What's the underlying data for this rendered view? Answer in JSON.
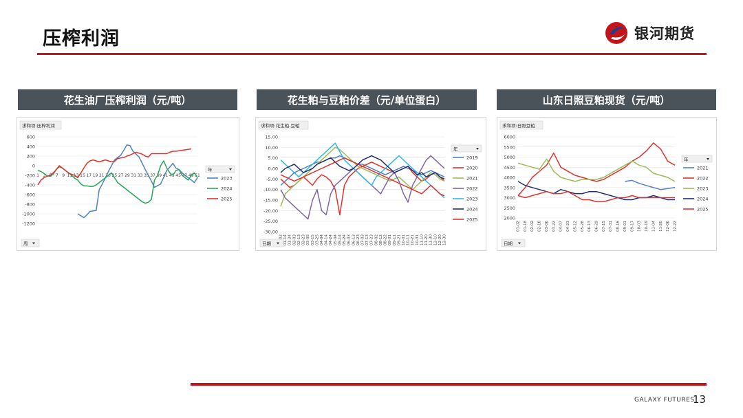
{
  "slide": {
    "title": "压榨利润",
    "logo_text": "银河期货",
    "footer": "GALAXY FUTURES",
    "page": "13"
  },
  "colors": {
    "accent": "#c3161c",
    "header_bg": "#4a525a",
    "s2019": "#4f81bd",
    "s2020": "#e0322d",
    "s2021": "#9bbb59",
    "s2022": "#8064a2",
    "s2023": "#2eb7e6",
    "s2024": "#1f2e6e",
    "s2025": "#e0322d"
  },
  "chart_data": [
    {
      "panel_title": "花生油厂压榨利润（元/吨）",
      "type": "line",
      "field_label": "求和项:压榨利润",
      "filter_label": "周",
      "legend_title": "年",
      "yticks": [
        "600",
        "400",
        "200",
        "0",
        "-200",
        "-400",
        "-600",
        "-800",
        "-1000",
        "-1200"
      ],
      "ylim": [
        -1200,
        600
      ],
      "xlim": [
        1,
        53
      ],
      "xticks": [
        "1",
        "3",
        "5",
        "7",
        "9",
        "11",
        "13",
        "15",
        "17",
        "19",
        "21",
        "23",
        "25",
        "27",
        "29",
        "31",
        "33",
        "35",
        "37",
        "39",
        "41",
        "43",
        "45",
        "47",
        "49",
        "51"
      ],
      "series": [
        {
          "name": "2023",
          "color": "#4f81bd",
          "x": [
            14,
            16,
            17,
            18,
            20,
            21,
            22,
            23,
            24,
            25,
            26,
            28,
            29,
            30,
            31,
            32,
            34,
            35,
            36,
            37,
            38,
            39,
            41,
            43,
            44,
            45,
            46,
            47,
            48,
            49,
            50,
            51,
            52,
            53
          ],
          "y": [
            -1000,
            -1080,
            -1020,
            -950,
            -930,
            -500,
            -380,
            -250,
            -120,
            0,
            120,
            220,
            320,
            430,
            420,
            300,
            180,
            50,
            -80,
            -200,
            -320,
            -450,
            -380,
            -100,
            -30,
            50,
            -50,
            -80,
            -150,
            -200,
            -250,
            -300,
            -350,
            -250
          ]
        },
        {
          "name": "2024",
          "color": "#2aa35a",
          "x": [
            1,
            2,
            3,
            4,
            5,
            6,
            7,
            8,
            9,
            10,
            11,
            12,
            13,
            14,
            15,
            16,
            17,
            18,
            19,
            20,
            21,
            22,
            23,
            24,
            25,
            26,
            27,
            28,
            29,
            30,
            31,
            32,
            33,
            34,
            35,
            36,
            37,
            38,
            39,
            40,
            41,
            42,
            43,
            44,
            45,
            46,
            47,
            48,
            49,
            50,
            51,
            52,
            53
          ],
          "y": [
            -100,
            -120,
            -160,
            -210,
            -220,
            -180,
            -80,
            -20,
            -50,
            -100,
            -150,
            -200,
            -260,
            -300,
            -380,
            -420,
            -420,
            -430,
            -430,
            -400,
            -350,
            -300,
            -250,
            -200,
            -150,
            -250,
            -350,
            -400,
            -450,
            -500,
            -550,
            -600,
            -650,
            -700,
            -750,
            -780,
            -760,
            -700,
            -300,
            -200,
            0,
            100,
            -50,
            -150,
            -200,
            -100,
            -80,
            -200,
            -250,
            -300,
            -200,
            -150,
            -250
          ]
        },
        {
          "name": "2025",
          "color": "#e0322d",
          "x": [
            1,
            2,
            3,
            4,
            5,
            6,
            7,
            8,
            9,
            10,
            11,
            12,
            13,
            14,
            15,
            16,
            17,
            18,
            19,
            20,
            21,
            22,
            23,
            24,
            25,
            26,
            27,
            28,
            29,
            30,
            31,
            32,
            33,
            34,
            35,
            36,
            37,
            38,
            39,
            40,
            41,
            42,
            43,
            44,
            45,
            46,
            47,
            48,
            49,
            50,
            51
          ],
          "y": [
            -400,
            -300,
            -250,
            -220,
            -200,
            -150,
            -80,
            0,
            -50,
            -100,
            -150,
            -180,
            -200,
            -250,
            -150,
            -50,
            50,
            100,
            120,
            100,
            80,
            100,
            120,
            100,
            80,
            90,
            150,
            160,
            170,
            200,
            220,
            250,
            280,
            260,
            240,
            200,
            180,
            250,
            250,
            250,
            250,
            250,
            250,
            280,
            300,
            300,
            310,
            320,
            330,
            340,
            350
          ]
        }
      ]
    },
    {
      "panel_title": "花生粕与豆粕价差（元/单位蛋白）",
      "type": "line",
      "field_label": "求和项:花生粕-豆粕",
      "filter_label": "日期",
      "legend_title": "年",
      "yticks": [
        "15.00",
        "10.00",
        "5.00",
        "0.00",
        "-5.00",
        "-10.00",
        "-15.00",
        "-20.00",
        "-25.00",
        "-30.00"
      ],
      "ylim": [
        -30,
        15
      ],
      "xticks": [
        "01-02",
        "01-14",
        "01-24",
        "02-03",
        "02-13",
        "02-23",
        "03-05",
        "03-15",
        "03-25",
        "04-04",
        "04-14",
        "04-24",
        "05-04",
        "05-14",
        "05-24",
        "06-03",
        "06-13",
        "06-23",
        "07-03",
        "07-13",
        "07-23",
        "08-02",
        "08-12",
        "08-22",
        "09-01",
        "09-11",
        "09-21",
        "10-01",
        "10-11",
        "10-21",
        "10-31",
        "11-10",
        "11-20",
        "11-30",
        "12-10",
        "12-20",
        "12-30"
      ],
      "series": [
        {
          "name": "2019",
          "color": "#4f81bd",
          "y": [
            -8,
            -6,
            -4,
            -2,
            -1,
            0,
            1,
            2,
            3,
            3,
            4,
            5,
            5,
            6,
            5,
            4,
            3,
            2,
            2,
            1,
            0,
            -1,
            -2,
            -3,
            -2,
            -1,
            0,
            1,
            0,
            -1,
            -2,
            -3,
            -2,
            -1,
            -2,
            -3,
            -4
          ]
        },
        {
          "name": "2020",
          "color": "#e0322d",
          "y": [
            -5,
            -7,
            -9,
            -8,
            -6,
            -4,
            -6,
            -8,
            -5,
            -3,
            -4,
            -6,
            -10,
            -22,
            -8,
            -4,
            -2,
            0,
            1,
            2,
            3,
            2,
            1,
            0,
            -1,
            -2,
            -1,
            0,
            1,
            -2,
            -4,
            -6,
            -5,
            -3,
            -2,
            -4,
            -6
          ]
        },
        {
          "name": "2021",
          "color": "#9bbb59",
          "y": [
            -18,
            -12,
            -10,
            -8,
            -6,
            -4,
            -2,
            0,
            2,
            4,
            6,
            8,
            10,
            9,
            7,
            5,
            3,
            1,
            0,
            -1,
            -2,
            -3,
            -4,
            -5,
            -6,
            -5,
            -4,
            -6,
            -8,
            -10,
            -8,
            -6,
            -4,
            -2,
            -3,
            -5,
            -6
          ]
        },
        {
          "name": "2022",
          "color": "#8064a2",
          "y": [
            -10,
            -14,
            -16,
            -18,
            -20,
            -22,
            -24,
            -15,
            -10,
            -20,
            -22,
            -12,
            -8,
            -6,
            -4,
            -2,
            0,
            -2,
            -4,
            -6,
            -8,
            -10,
            -12,
            -8,
            -4,
            -2,
            -6,
            -12,
            -16,
            -8,
            -4,
            0,
            4,
            6,
            4,
            2,
            0
          ]
        },
        {
          "name": "2023",
          "color": "#2eb7e6",
          "y": [
            4,
            2,
            0,
            -2,
            -4,
            -2,
            0,
            2,
            4,
            6,
            8,
            10,
            12,
            8,
            4,
            2,
            0,
            -2,
            -4,
            -6,
            -8,
            -4,
            -2,
            0,
            2,
            4,
            6,
            4,
            2,
            0,
            -2,
            -4,
            -6,
            -8,
            -10,
            -12,
            -14
          ]
        },
        {
          "name": "2024",
          "color": "#1f2e6e",
          "y": [
            -2,
            0,
            1,
            2,
            0,
            -2,
            -1,
            0,
            2,
            3,
            4,
            5,
            3,
            1,
            0,
            -1,
            0,
            2,
            4,
            5,
            6,
            5,
            4,
            2,
            0,
            -2,
            -1,
            0,
            1,
            -1,
            -3,
            -2,
            -4,
            -3,
            -2,
            -4,
            -5
          ]
        },
        {
          "name": "2025",
          "color": "#e0322d",
          "y": [
            -3,
            -4,
            -5,
            -6,
            -5,
            -4,
            -3,
            -2,
            -1,
            0,
            1,
            2,
            3,
            4,
            5,
            4,
            3,
            2,
            1,
            0,
            -1,
            -2,
            -3,
            -4,
            -5,
            -6,
            -7,
            -8,
            -9,
            -10,
            -11,
            -12,
            -10,
            -8,
            -10,
            -12,
            -13
          ]
        }
      ]
    },
    {
      "panel_title": "山东日照豆粕现货（元/吨）",
      "type": "line",
      "field_label": "求和项:日照豆粕",
      "filter_label": "日期",
      "legend_title": "年",
      "yticks": [
        "6000",
        "5500",
        "5000",
        "4500",
        "4000",
        "3500",
        "3000",
        "2500",
        "2000"
      ],
      "ylim": [
        2000,
        6000
      ],
      "xticks": [
        "01-02",
        "01-18",
        "02-02",
        "02-18",
        "03-06",
        "03-22",
        "04-07",
        "04-23",
        "05-12",
        "05-28",
        "06-13",
        "06-29",
        "07-15",
        "07-31",
        "08-16",
        "09-01",
        "09-17",
        "10-03",
        "10-19",
        "11-04",
        "11-20",
        "12-06",
        "12-22"
      ],
      "series": [
        {
          "name": "2021",
          "color": "#4f81bd",
          "y": [
            null,
            null,
            null,
            null,
            null,
            null,
            null,
            null,
            null,
            null,
            null,
            null,
            null,
            null,
            null,
            3800,
            3850,
            3700,
            3600,
            3500,
            3400,
            3450,
            3500
          ]
        },
        {
          "name": "2022",
          "color": "#e0322d",
          "y": [
            3100,
            3500,
            4000,
            4300,
            4600,
            5200,
            4500,
            4300,
            4100,
            4000,
            3900,
            3800,
            3900,
            4100,
            4300,
            4500,
            4800,
            5000,
            5300,
            5700,
            5400,
            4800,
            4600
          ]
        },
        {
          "name": "2023",
          "color": "#9bbb59",
          "y": [
            4700,
            4600,
            4500,
            4400,
            4900,
            4300,
            4000,
            3900,
            3800,
            3900,
            3900,
            3900,
            4000,
            4200,
            4400,
            4600,
            4800,
            4600,
            4500,
            4200,
            4100,
            4000,
            3800
          ]
        },
        {
          "name": "2024",
          "color": "#1f2e6e",
          "y": [
            3800,
            3600,
            3500,
            3400,
            3300,
            3200,
            3400,
            3300,
            3200,
            3200,
            3300,
            3300,
            3200,
            3100,
            3000,
            2900,
            2900,
            3000,
            3000,
            3100,
            3000,
            2900,
            2900
          ]
        },
        {
          "name": "2025",
          "color": "#e0322d",
          "y": [
            3100,
            3000,
            3100,
            3200,
            3300,
            3200,
            3200,
            3300,
            3100,
            2900,
            2900,
            2800,
            2800,
            2900,
            3000,
            3000,
            3100,
            3000,
            3000,
            3000,
            3000,
            3000,
            3000
          ]
        }
      ]
    }
  ]
}
